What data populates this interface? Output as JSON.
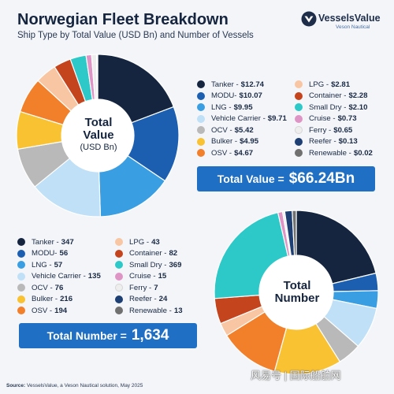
{
  "header": {
    "title": "Norwegian Fleet Breakdown",
    "subtitle": "Ship Type by Total Value (USD Bn) and Number of Vessels"
  },
  "logo": {
    "name": "VesselsValue",
    "sub": "Veson Nautical"
  },
  "colors": {
    "Tanker": "#15253f",
    "MODU": "#1c5fb0",
    "LNG": "#3a9ee2",
    "Vehicle Carrier": "#bfe0f6",
    "OCV": "#b9b9b9",
    "Bulker": "#f8c232",
    "OSV": "#f27f2a",
    "LPG": "#f8c6a2",
    "Container": "#c4441e",
    "Small Dry": "#2cc9c8",
    "Cruise": "#de95c5",
    "Ferry": "#eeeeee",
    "Reefer": "#1d3f73",
    "Renewable": "#707070"
  },
  "value_legend": {
    "left": [
      {
        "name": "Tanker",
        "label": "Tanker -",
        "value": "$12.74"
      },
      {
        "name": "MODU",
        "label": "MODU-",
        "value": "$10.07"
      },
      {
        "name": "LNG",
        "label": "LNG -",
        "value": "$9.95"
      },
      {
        "name": "Vehicle Carrier",
        "label": "Vehicle Carrier -",
        "value": "$9.71"
      },
      {
        "name": "OCV",
        "label": "OCV -",
        "value": "$5.42"
      },
      {
        "name": "Bulker",
        "label": "Bulker -",
        "value": "$4.95"
      },
      {
        "name": "OSV",
        "label": "OSV -",
        "value": "$4.67"
      }
    ],
    "right": [
      {
        "name": "LPG",
        "label": "LPG -",
        "value": "$2.81"
      },
      {
        "name": "Container",
        "label": "Container -",
        "value": "$2.28"
      },
      {
        "name": "Small Dry",
        "label": "Small Dry -",
        "value": "$2.10"
      },
      {
        "name": "Cruise",
        "label": "Cruise -",
        "value": "$0.73"
      },
      {
        "name": "Ferry",
        "label": "Ferry -",
        "value": "$0.65"
      },
      {
        "name": "Reefer",
        "label": "Reefer -",
        "value": "$0.13"
      },
      {
        "name": "Renewable",
        "label": "Renewable -",
        "value": "$0.02"
      }
    ]
  },
  "number_legend": {
    "left": [
      {
        "name": "Tanker",
        "label": "Tanker -",
        "value": "347"
      },
      {
        "name": "MODU",
        "label": "MODU-",
        "value": "56"
      },
      {
        "name": "LNG",
        "label": "LNG -",
        "value": "57"
      },
      {
        "name": "Vehicle Carrier",
        "label": "Vehicle Carrier -",
        "value": "135"
      },
      {
        "name": "OCV",
        "label": "OCV -",
        "value": "76"
      },
      {
        "name": "Bulker",
        "label": "Bulker -",
        "value": "216"
      },
      {
        "name": "OSV",
        "label": "OSV -",
        "value": "194"
      }
    ],
    "right": [
      {
        "name": "LPG",
        "label": "LPG -",
        "value": "43"
      },
      {
        "name": "Container",
        "label": "Container -",
        "value": "82"
      },
      {
        "name": "Small Dry",
        "label": "Small Dry -",
        "value": "369"
      },
      {
        "name": "Cruise",
        "label": "Cruise -",
        "value": "15"
      },
      {
        "name": "Ferry",
        "label": "Ferry -",
        "value": "7"
      },
      {
        "name": "Reefer",
        "label": "Reefer -",
        "value": "24"
      },
      {
        "name": "Renewable",
        "label": "Renewable -",
        "value": "13"
      }
    ]
  },
  "totals": {
    "value_label": "Total Value =",
    "value": "$66.24Bn",
    "number_label": "Total Number =",
    "number": "1,634"
  },
  "centers": {
    "value_line1": "Total",
    "value_line2": "Value",
    "value_line3": "(USD Bn)",
    "number_line1": "Total",
    "number_line2": "Number"
  },
  "source": {
    "label": "Source:",
    "text": "VesselsValue, a Veson Nautical solution, May 2025"
  },
  "watermark": "风易号 | 国际船舶网",
  "chart_data": [
    {
      "type": "pie",
      "title": "Total Value (USD Bn)",
      "categories": [
        "Tanker",
        "MODU",
        "LNG",
        "Vehicle Carrier",
        "OCV",
        "Bulker",
        "OSV",
        "LPG",
        "Container",
        "Small Dry",
        "Cruise",
        "Ferry",
        "Reefer",
        "Renewable"
      ],
      "values": [
        12.74,
        10.07,
        9.95,
        9.71,
        5.42,
        4.95,
        4.67,
        2.81,
        2.28,
        2.1,
        0.73,
        0.65,
        0.13,
        0.02
      ],
      "total": 66.24,
      "legend": "right"
    },
    {
      "type": "pie",
      "title": "Total Number",
      "categories": [
        "Tanker",
        "MODU",
        "LNG",
        "Vehicle Carrier",
        "OCV",
        "Bulker",
        "OSV",
        "LPG",
        "Container",
        "Small Dry",
        "Cruise",
        "Ferry",
        "Reefer",
        "Renewable"
      ],
      "values": [
        347,
        56,
        57,
        135,
        76,
        216,
        194,
        43,
        82,
        369,
        15,
        7,
        24,
        13
      ],
      "total": 1634,
      "legend": "left"
    }
  ]
}
